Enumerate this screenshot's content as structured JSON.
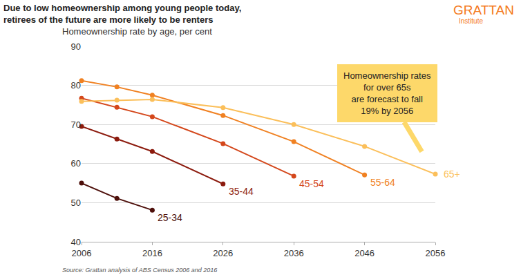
{
  "chart_data": {
    "type": "line",
    "title": [
      "Due to low homeownership among young people today,",
      "retirees of the future are more likely to be renters"
    ],
    "subtitle": "Homeownership rate by age, per cent",
    "logo": [
      "GRATTAN",
      "Institute"
    ],
    "source": "Source: Grattan analysis of ABS Census 2006 and 2016",
    "annotations": [
      {
        "text": [
          "Homeownership rates",
          "for over 65s",
          "are forecast to fall",
          "19% by 2056"
        ]
      }
    ],
    "x": [
      2006,
      2011,
      2016,
      2026,
      2036,
      2046,
      2056
    ],
    "xlim": [
      2006,
      2056
    ],
    "xticks": [
      2006,
      2016,
      2026,
      2036,
      2046,
      2056
    ],
    "ylim": [
      40,
      90
    ],
    "yticks": [
      40,
      50,
      60,
      70,
      80,
      90
    ],
    "grid": true,
    "marker": "circle",
    "series": [
      {
        "name": "25-34",
        "color": "#4d0f0a",
        "values": [
          55.0,
          51.1,
          48.1,
          null,
          null,
          null,
          null
        ]
      },
      {
        "name": "35-44",
        "color": "#8c1b0e",
        "values": [
          69.5,
          66.3,
          63.1,
          54.8,
          null,
          null,
          null
        ]
      },
      {
        "name": "45-54",
        "color": "#d4471b",
        "values": [
          76.7,
          74.4,
          72.0,
          65.1,
          56.8,
          null,
          null
        ]
      },
      {
        "name": "55-64",
        "color": "#f08122",
        "values": [
          81.2,
          79.6,
          77.5,
          72.3,
          65.6,
          57.1,
          null
        ]
      },
      {
        "name": "65+",
        "color": "#fbbf5a",
        "values": [
          75.9,
          76.2,
          76.4,
          74.3,
          70.0,
          64.4,
          57.3
        ]
      }
    ]
  }
}
